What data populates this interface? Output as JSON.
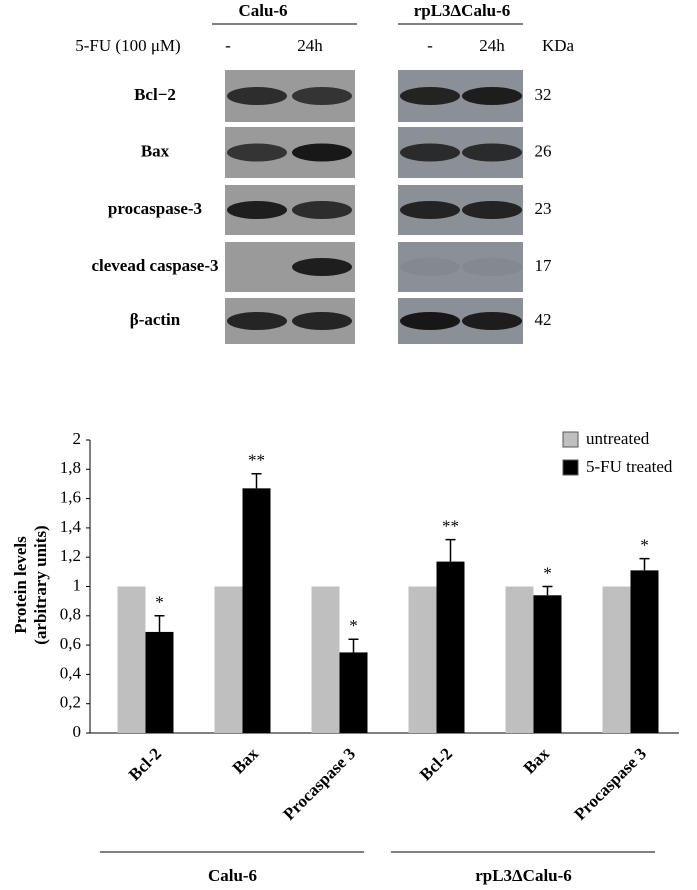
{
  "blot": {
    "groups": [
      "Calu-6",
      "rpL3ΔCalu-6"
    ],
    "treatment": "5-FU (100 μM)",
    "lanes": [
      "-",
      "24h",
      "-",
      "24h"
    ],
    "size_unit": "KDa",
    "rows": [
      {
        "label": "Bcl−2",
        "size": "32"
      },
      {
        "label": "Bax",
        "size": "26"
      },
      {
        "label": "procaspase-3",
        "size": "23"
      },
      {
        "label": "clevead caspase-3",
        "size": "17"
      },
      {
        "label": "β-actin",
        "size": "42"
      }
    ]
  },
  "chart_data": {
    "type": "bar",
    "ylabel": [
      "Protein levels",
      "(arbitrary units)"
    ],
    "categories": [
      "Bcl-2",
      "Bax",
      "Procaspase 3",
      "Bcl-2",
      "Bax",
      "Procaspase 3"
    ],
    "category_groups": [
      {
        "label": "Calu-6",
        "size": 3
      },
      {
        "label": "rpL3ΔCalu-6",
        "size": 3
      }
    ],
    "series": [
      {
        "name": "untreated",
        "color": "#bfbfbf",
        "values": [
          1,
          1,
          1,
          1,
          1,
          1
        ]
      },
      {
        "name": "5-FU treated",
        "color": "#000000",
        "values": [
          0.69,
          1.67,
          0.55,
          1.17,
          0.94,
          1.11
        ],
        "errors": [
          0.11,
          0.1,
          0.09,
          0.15,
          0.06,
          0.08
        ],
        "significance": [
          "*",
          "**",
          "*",
          "**",
          "*",
          "*"
        ]
      }
    ],
    "ylim": [
      0,
      2
    ],
    "yticks": [
      0,
      {
        "value": 0.2,
        "label": "0,2"
      },
      {
        "value": 0.4,
        "label": "0,4"
      },
      {
        "value": 0.6,
        "label": "0,6"
      },
      {
        "value": 0.8,
        "label": "0,8"
      },
      1,
      {
        "value": 1.2,
        "label": "1,2"
      },
      {
        "value": 1.4,
        "label": "1,4"
      },
      {
        "value": 1.6,
        "label": "1,6"
      },
      {
        "value": 1.8,
        "label": "1,8"
      },
      2
    ],
    "legend": "top-right"
  }
}
